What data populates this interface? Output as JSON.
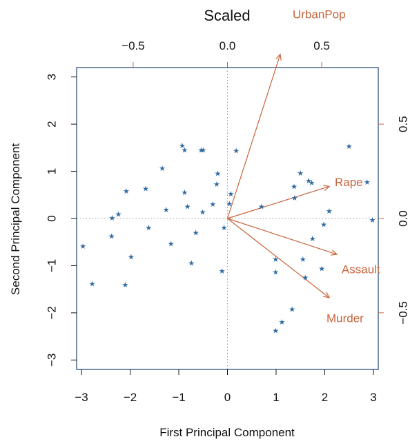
{
  "chart_data": {
    "type": "scatter",
    "title": "Scaled",
    "xlabel": "First Principal Component",
    "ylabel": "Second Principal Component",
    "xlim": [
      -3.1,
      3.1
    ],
    "ylim": [
      -3.2,
      3.2
    ],
    "x_ticks": [
      "−3",
      "−2",
      "−1",
      "0",
      "1",
      "2",
      "3"
    ],
    "y_ticks": [
      "−3",
      "−2",
      "−1",
      "0",
      "1",
      "2",
      "3"
    ],
    "secondary_xlim": [
      -0.8,
      0.8
    ],
    "secondary_ylim": [
      -0.8,
      0.8
    ],
    "secondary_x_ticks": [
      "−0.5",
      "0.0",
      "0.5"
    ],
    "secondary_y_ticks": [
      "−0.5",
      "0.0",
      "0.5"
    ],
    "reference_lines": "dotted at x=0 and y=0",
    "colors": {
      "points": "#2f6aa3",
      "loadings": "#c8643c",
      "axes_secondary": "#c8643c",
      "frame": "#2c4f78"
    },
    "points": [
      {
        "x": -2.97,
        "y": -0.59
      },
      {
        "x": -2.78,
        "y": -1.39
      },
      {
        "x": -2.37,
        "y": 0.01
      },
      {
        "x": -2.38,
        "y": -0.38
      },
      {
        "x": -2.24,
        "y": 0.09
      },
      {
        "x": -2.08,
        "y": 0.58
      },
      {
        "x": -2.1,
        "y": -1.41
      },
      {
        "x": -1.98,
        "y": -0.82
      },
      {
        "x": -1.68,
        "y": 0.63
      },
      {
        "x": -1.62,
        "y": -0.2
      },
      {
        "x": -1.34,
        "y": 1.06
      },
      {
        "x": -1.26,
        "y": 0.18
      },
      {
        "x": -1.16,
        "y": -0.54
      },
      {
        "x": -0.93,
        "y": 1.54
      },
      {
        "x": -0.88,
        "y": 1.45
      },
      {
        "x": -0.88,
        "y": 0.55
      },
      {
        "x": -0.82,
        "y": 0.25
      },
      {
        "x": -0.74,
        "y": -0.95
      },
      {
        "x": -0.65,
        "y": -0.31
      },
      {
        "x": -0.54,
        "y": 1.45
      },
      {
        "x": -0.5,
        "y": 1.45
      },
      {
        "x": -0.51,
        "y": 0.13
      },
      {
        "x": -0.3,
        "y": 0.3
      },
      {
        "x": -0.2,
        "y": 0.95
      },
      {
        "x": -0.22,
        "y": 0.72
      },
      {
        "x": -0.11,
        "y": -1.12
      },
      {
        "x": -0.07,
        "y": -0.2
      },
      {
        "x": 0.04,
        "y": 0.31
      },
      {
        "x": 0.07,
        "y": 0.52
      },
      {
        "x": 0.18,
        "y": 1.43
      },
      {
        "x": 0.7,
        "y": 0.25
      },
      {
        "x": 0.99,
        "y": -0.87
      },
      {
        "x": 0.99,
        "y": -1.14
      },
      {
        "x": 0.99,
        "y": -2.38
      },
      {
        "x": 1.12,
        "y": -2.2
      },
      {
        "x": 1.33,
        "y": -1.93
      },
      {
        "x": 1.37,
        "y": 0.67
      },
      {
        "x": 1.38,
        "y": 0.43
      },
      {
        "x": 1.5,
        "y": 0.96
      },
      {
        "x": 1.55,
        "y": -0.87
      },
      {
        "x": 1.6,
        "y": -1.26
      },
      {
        "x": 1.67,
        "y": 0.8
      },
      {
        "x": 1.73,
        "y": 0.75
      },
      {
        "x": 1.75,
        "y": -0.43
      },
      {
        "x": 1.94,
        "y": -1.07
      },
      {
        "x": 1.98,
        "y": -0.13
      },
      {
        "x": 2.09,
        "y": 0.15
      },
      {
        "x": 2.5,
        "y": 1.53
      },
      {
        "x": 2.87,
        "y": 0.77
      },
      {
        "x": 2.98,
        "y": -0.04
      }
    ],
    "loadings": [
      {
        "name": "UrbanPop",
        "x": 0.28,
        "y": 0.87
      },
      {
        "name": "Rape",
        "x": 0.54,
        "y": 0.17
      },
      {
        "name": "Assault",
        "x": 0.58,
        "y": -0.19
      },
      {
        "name": "Murder",
        "x": 0.54,
        "y": -0.42
      }
    ]
  }
}
